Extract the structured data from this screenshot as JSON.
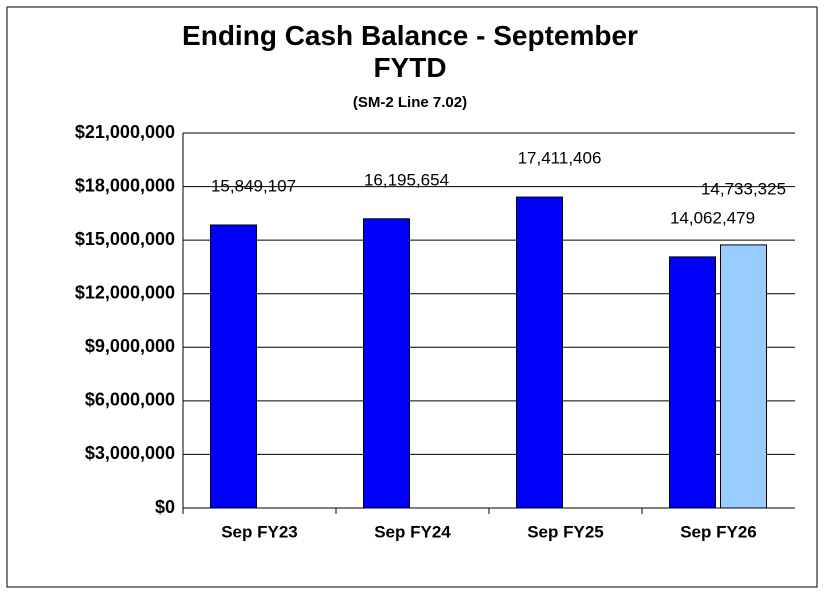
{
  "chart_data": {
    "type": "bar",
    "title": "Ending Cash Balance - September FYTD",
    "subtitle": "(SM-2 Line 7.02)",
    "categories": [
      "Sep FY23",
      "Sep FY24",
      "Sep FY25",
      "Sep FY26"
    ],
    "series": [
      {
        "color": "#0000ff",
        "values": [
          15849107,
          16195654,
          17411406,
          14062479
        ],
        "value_labels": [
          "15,849,107",
          "16,195,654",
          "17,411,406",
          "14,062,479"
        ]
      },
      {
        "color": "#99ccff",
        "values": [
          null,
          null,
          null,
          14733325
        ],
        "value_labels": [
          null,
          null,
          null,
          "14,733,325"
        ]
      }
    ],
    "ylim": [
      0,
      21000000
    ],
    "yticks": [
      {
        "value": 0,
        "label": "$0"
      },
      {
        "value": 3000000,
        "label": "$3,000,000"
      },
      {
        "value": 6000000,
        "label": "$6,000,000"
      },
      {
        "value": 9000000,
        "label": "$9,000,000"
      },
      {
        "value": 12000000,
        "label": "$12,000,000"
      },
      {
        "value": 15000000,
        "label": "$15,000,000"
      },
      {
        "value": 18000000,
        "label": "$18,000,000"
      },
      {
        "value": 21000000,
        "label": "$21,000,000"
      }
    ],
    "grid": true
  }
}
